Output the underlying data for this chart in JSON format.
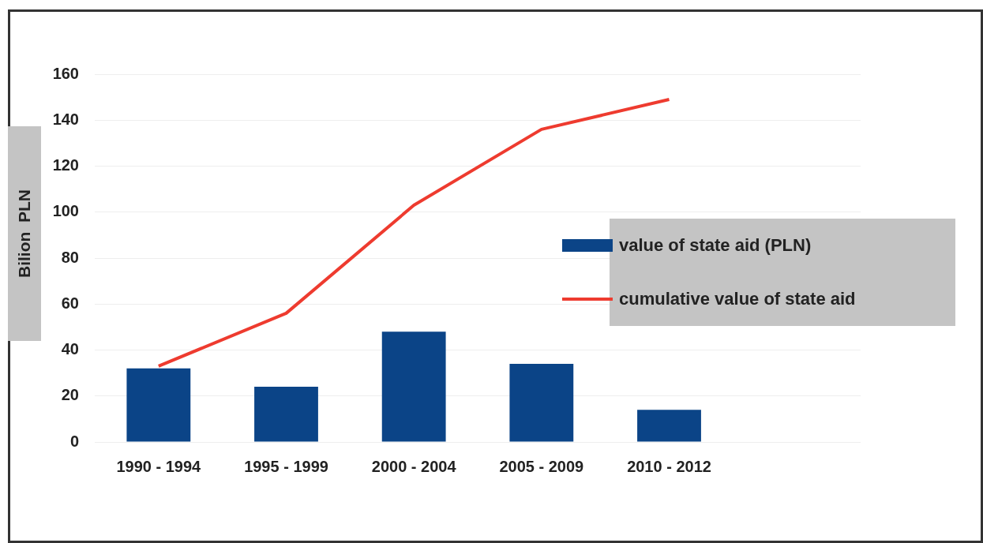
{
  "chart_data": {
    "type": "bar",
    "ylabel": "Bilion  PLN",
    "categories": [
      "1990 - 1994",
      "1995 - 1999",
      "2000 - 2004",
      "2005 - 2009",
      "2010 - 2012",
      null
    ],
    "series": [
      {
        "name": "value of state aid (PLN)",
        "color": "#0b4487",
        "values": [
          32,
          24,
          48,
          34,
          14,
          null
        ]
      },
      {
        "name": "cumulative value of state aid",
        "type": "line",
        "color": "#ee3b2f",
        "values": [
          33,
          56,
          103,
          136,
          149,
          null
        ]
      }
    ],
    "ylim": [
      0,
      160
    ],
    "yticks": [
      0,
      20,
      40,
      60,
      80,
      100,
      120,
      140,
      160
    ],
    "grid": "y",
    "legend": "right",
    "marker": "none"
  }
}
